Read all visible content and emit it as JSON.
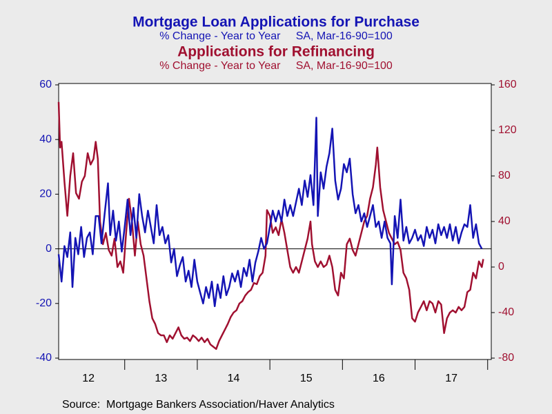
{
  "chart_data": {
    "type": "line",
    "series": [
      {
        "name": "Mortgage Loan Applications for Purchase",
        "subtitle": "% Change - Year to Year     SA, Mar-16-90=100",
        "color": "#1414b4",
        "axis": "y",
        "x": [
          2012.09,
          2012.13,
          2012.17,
          2012.21,
          2012.25,
          2012.28,
          2012.32,
          2012.36,
          2012.4,
          2012.44,
          2012.48,
          2012.52,
          2012.56,
          2012.6,
          2012.64,
          2012.68,
          2012.72,
          2012.77,
          2012.8,
          2012.84,
          2012.88,
          2012.92,
          2012.96,
          2013.0,
          2013.04,
          2013.08,
          2013.12,
          2013.16,
          2013.2,
          2013.24,
          2013.28,
          2013.32,
          2013.36,
          2013.4,
          2013.44,
          2013.48,
          2013.52,
          2013.56,
          2013.6,
          2013.64,
          2013.68,
          2013.72,
          2013.76,
          2013.8,
          2013.84,
          2013.88,
          2013.92,
          2013.96,
          2014.0,
          2014.04,
          2014.08,
          2014.12,
          2014.16,
          2014.2,
          2014.24,
          2014.28,
          2014.32,
          2014.36,
          2014.4,
          2014.44,
          2014.48,
          2014.52,
          2014.56,
          2014.6,
          2014.64,
          2014.68,
          2014.72,
          2014.76,
          2014.8,
          2014.84,
          2014.88,
          2014.92,
          2014.96,
          2015.0,
          2015.04,
          2015.08,
          2015.12,
          2015.16,
          2015.2,
          2015.24,
          2015.28,
          2015.32,
          2015.36,
          2015.4,
          2015.44,
          2015.48,
          2015.52,
          2015.56,
          2015.6,
          2015.64,
          2015.66,
          2015.7,
          2015.74,
          2015.78,
          2015.82,
          2015.86,
          2015.9,
          2015.94,
          2015.98,
          2016.02,
          2016.06,
          2016.1,
          2016.14,
          2016.18,
          2016.22,
          2016.26,
          2016.3,
          2016.34,
          2016.38,
          2016.42,
          2016.46,
          2016.5,
          2016.54,
          2016.58,
          2016.62,
          2016.66,
          2016.68,
          2016.72,
          2016.76,
          2016.8,
          2016.84,
          2016.88,
          2016.92,
          2016.96,
          2017.0,
          2017.04,
          2017.08,
          2017.12,
          2017.16,
          2017.2,
          2017.24,
          2017.28,
          2017.32,
          2017.36,
          2017.4,
          2017.44,
          2017.48,
          2017.52,
          2017.56,
          2017.6,
          2017.64,
          2017.68,
          2017.72,
          2017.76,
          2017.8,
          2017.84,
          2017.88,
          2017.92
        ],
        "values": [
          -2,
          -12,
          1,
          -3,
          6,
          -14,
          4,
          -2,
          8,
          -3,
          4,
          6,
          -2,
          12,
          12,
          2,
          12,
          24,
          5,
          14,
          3,
          10,
          -1,
          8,
          18,
          5,
          15,
          4,
          20,
          12,
          6,
          14,
          8,
          2,
          16,
          5,
          8,
          2,
          5,
          -5,
          0,
          -10,
          -6,
          -3,
          -12,
          -8,
          -14,
          -4,
          -12,
          -16,
          -20,
          -14,
          -18,
          -12,
          -21,
          -13,
          -18,
          -10,
          -17,
          -14,
          -9,
          -12,
          -8,
          -14,
          -7,
          -10,
          -4,
          -12,
          -5,
          -1,
          4,
          0,
          2,
          8,
          14,
          10,
          14,
          10,
          18,
          12,
          16,
          12,
          17,
          22,
          16,
          25,
          19,
          27,
          16,
          48,
          12,
          28,
          22,
          30,
          35,
          44,
          25,
          18,
          22,
          31,
          28,
          33,
          20,
          13,
          16,
          10,
          13,
          8,
          12,
          16,
          8,
          10,
          4,
          10,
          4,
          2,
          -13,
          12,
          4,
          18,
          3,
          8,
          2,
          4,
          7,
          3,
          5,
          1,
          8,
          4,
          7,
          2,
          9,
          5,
          8,
          4,
          9,
          3,
          8,
          2,
          6,
          9,
          8,
          16,
          4,
          9,
          2,
          0
        ]
      },
      {
        "name": "Applications for Refinancing",
        "subtitle": "% Change - Year to Year     SA, Mar-16-90=100",
        "color": "#a01030",
        "axis": "y2",
        "x": [
          2012.09,
          2012.11,
          2012.13,
          2012.17,
          2012.21,
          2012.25,
          2012.29,
          2012.33,
          2012.37,
          2012.41,
          2012.45,
          2012.49,
          2012.53,
          2012.57,
          2012.6,
          2012.63,
          2012.66,
          2012.7,
          2012.74,
          2012.78,
          2012.82,
          2012.86,
          2012.9,
          2012.94,
          2012.98,
          2013.02,
          2013.06,
          2013.1,
          2013.14,
          2013.18,
          2013.22,
          2013.26,
          2013.3,
          2013.34,
          2013.38,
          2013.42,
          2013.46,
          2013.5,
          2013.54,
          2013.58,
          2013.62,
          2013.66,
          2013.7,
          2013.74,
          2013.78,
          2013.82,
          2013.86,
          2013.9,
          2013.94,
          2013.98,
          2014.02,
          2014.06,
          2014.1,
          2014.14,
          2014.18,
          2014.22,
          2014.26,
          2014.3,
          2014.34,
          2014.38,
          2014.42,
          2014.46,
          2014.5,
          2014.54,
          2014.58,
          2014.62,
          2014.66,
          2014.7,
          2014.74,
          2014.78,
          2014.82,
          2014.86,
          2014.9,
          2014.94,
          2014.96,
          2015.0,
          2015.04,
          2015.08,
          2015.12,
          2015.16,
          2015.2,
          2015.24,
          2015.28,
          2015.32,
          2015.36,
          2015.4,
          2015.44,
          2015.48,
          2015.52,
          2015.56,
          2015.58,
          2015.62,
          2015.66,
          2015.7,
          2015.74,
          2015.78,
          2015.82,
          2015.86,
          2015.9,
          2015.94,
          2015.98,
          2016.02,
          2016.06,
          2016.1,
          2016.14,
          2016.18,
          2016.22,
          2016.26,
          2016.3,
          2016.34,
          2016.38,
          2016.42,
          2016.46,
          2016.48,
          2016.52,
          2016.56,
          2016.6,
          2016.64,
          2016.68,
          2016.72,
          2016.76,
          2016.8,
          2016.84,
          2016.88,
          2016.92,
          2016.96,
          2017.0,
          2017.04,
          2017.08,
          2017.12,
          2017.16,
          2017.2,
          2017.24,
          2017.28,
          2017.32,
          2017.36,
          2017.4,
          2017.44,
          2017.48,
          2017.52,
          2017.56,
          2017.6,
          2017.64,
          2017.68,
          2017.72,
          2017.76,
          2017.8,
          2017.84,
          2017.88,
          2017.92,
          2017.94
        ],
        "values": [
          145,
          105,
          110,
          75,
          45,
          80,
          100,
          65,
          60,
          75,
          80,
          100,
          90,
          95,
          110,
          95,
          40,
          20,
          30,
          15,
          10,
          25,
          0,
          5,
          -5,
          30,
          60,
          40,
          10,
          40,
          20,
          10,
          -10,
          -30,
          -45,
          -50,
          -58,
          -60,
          -60,
          -66,
          -60,
          -63,
          -58,
          -53,
          -60,
          -63,
          -62,
          -65,
          -60,
          -62,
          -65,
          -62,
          -66,
          -63,
          -68,
          -70,
          -72,
          -65,
          -60,
          -55,
          -50,
          -44,
          -40,
          -38,
          -32,
          -30,
          -25,
          -22,
          -20,
          -14,
          -15,
          -8,
          -5,
          10,
          50,
          45,
          30,
          35,
          28,
          42,
          30,
          15,
          0,
          -5,
          0,
          -5,
          5,
          15,
          25,
          40,
          20,
          5,
          0,
          5,
          0,
          2,
          10,
          0,
          -20,
          -25,
          -5,
          -10,
          20,
          25,
          15,
          10,
          20,
          30,
          40,
          45,
          60,
          70,
          90,
          105,
          70,
          50,
          40,
          30,
          25,
          20,
          22,
          15,
          -5,
          -10,
          -20,
          -45,
          -48,
          -40,
          -35,
          -30,
          -38,
          -30,
          -32,
          -40,
          -30,
          -33,
          -58,
          -45,
          -40,
          -38,
          -40,
          -35,
          -38,
          -35,
          -22,
          -20,
          -5,
          -10,
          5,
          0,
          7
        ]
      }
    ],
    "xlim": [
      2012.09,
      2018.05
    ],
    "xticks": [
      {
        "value": 2012.5,
        "label": "12"
      },
      {
        "value": 2013.5,
        "label": "13"
      },
      {
        "value": 2014.5,
        "label": "14"
      },
      {
        "value": 2015.5,
        "label": "15"
      },
      {
        "value": 2016.5,
        "label": "16"
      },
      {
        "value": 2017.5,
        "label": "17"
      }
    ],
    "xminor_ticks": [
      2013,
      2014,
      2015,
      2016,
      2017,
      2018
    ],
    "ylim": [
      -40,
      60
    ],
    "yticks": [
      -40,
      -20,
      0,
      20,
      40,
      60
    ],
    "y2lim": [
      -80,
      160
    ],
    "y2ticks": [
      -80,
      -40,
      0,
      40,
      80,
      120,
      160
    ],
    "zero_line": true,
    "source": "Source:  Mortgage Bankers Association/Haver Analytics"
  }
}
